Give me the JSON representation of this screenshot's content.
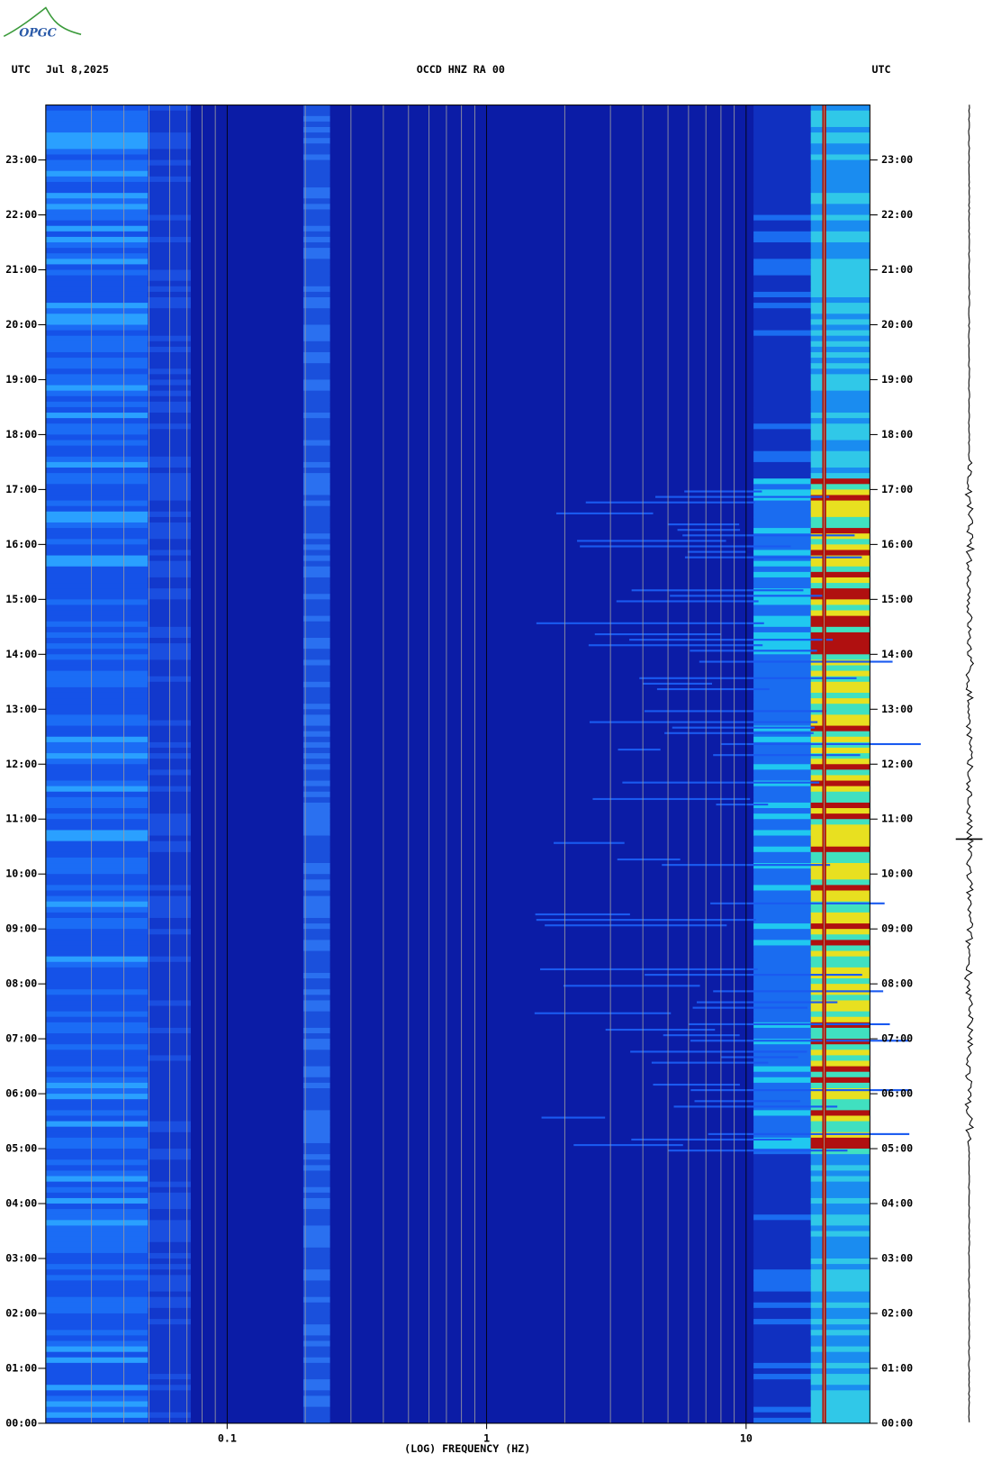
{
  "logo": "OPGC",
  "chart_data": {
    "type": "spectrogram",
    "header_left": "UTC",
    "date": "Jul 8,2025",
    "title": "OCCD HNZ RA 00",
    "header_right": "UTC",
    "xlabel": "(LOG) FREQUENCY (HZ)",
    "xscale": "log",
    "xlim": [
      0.02,
      30
    ],
    "xticks": [
      {
        "value": 0.1,
        "label": "0.1"
      },
      1,
      10
    ],
    "xgrid": [
      0.02,
      0.03,
      0.04,
      0.05,
      0.06,
      0.07,
      0.08,
      0.09,
      0.2,
      0.3,
      0.4,
      0.5,
      0.6,
      0.7,
      0.8,
      0.9,
      2,
      3,
      4,
      5,
      6,
      7,
      8,
      9,
      20
    ],
    "ylim": [
      0,
      24
    ],
    "yticks": [
      {
        "value": 0,
        "label": "00:00"
      },
      {
        "value": 1,
        "label": "01:00"
      },
      {
        "value": 2,
        "label": "02:00"
      },
      {
        "value": 3,
        "label": "03:00"
      },
      {
        "value": 4,
        "label": "04:00"
      },
      {
        "value": 5,
        "label": "05:00"
      },
      {
        "value": 6,
        "label": "06:00"
      },
      {
        "value": 7,
        "label": "07:00"
      },
      {
        "value": 8,
        "label": "08:00"
      },
      {
        "value": 9,
        "label": "09:00"
      },
      {
        "value": 10,
        "label": "10:00"
      },
      {
        "value": 11,
        "label": "11:00"
      },
      {
        "value": 12,
        "label": "12:00"
      },
      {
        "value": 13,
        "label": "13:00"
      },
      {
        "value": 14,
        "label": "14:00"
      },
      {
        "value": 15,
        "label": "15:00"
      },
      {
        "value": 16,
        "label": "16:00"
      },
      {
        "value": 17,
        "label": "17:00"
      },
      {
        "value": 18,
        "label": "18:00"
      },
      {
        "value": 19,
        "label": "19:00"
      },
      {
        "value": 20,
        "label": "20:00"
      },
      {
        "value": 21,
        "label": "21:00"
      },
      {
        "value": 22,
        "label": "22:00"
      },
      {
        "value": 23,
        "label": "23:00"
      }
    ]
  }
}
